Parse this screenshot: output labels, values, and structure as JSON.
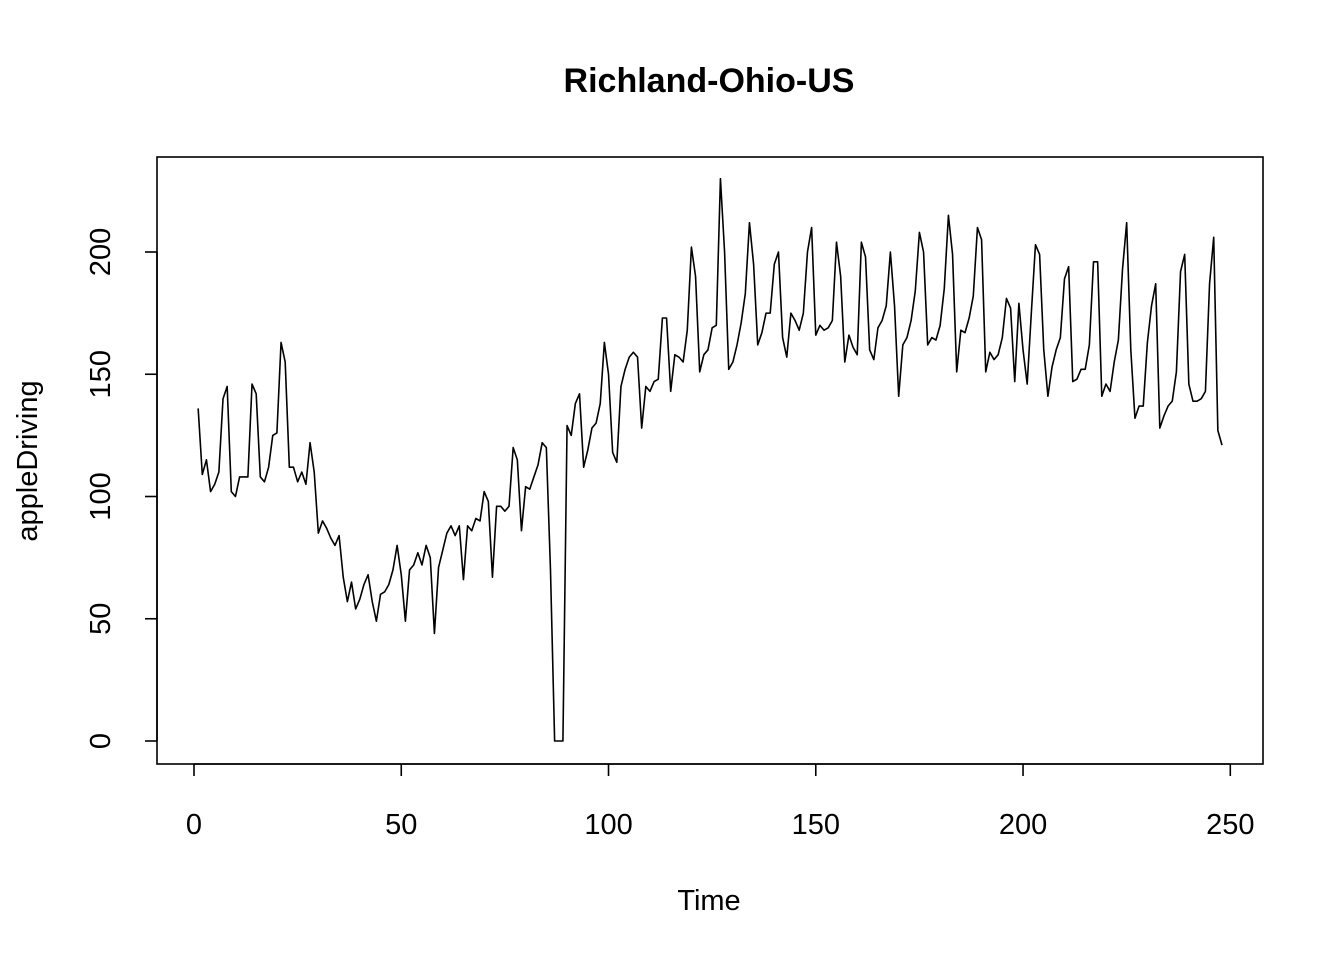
{
  "chart_data": {
    "type": "line",
    "title": "Richland-Ohio-US",
    "xlabel": "Time",
    "ylabel": "appleDriving",
    "xlim": [
      1,
      248
    ],
    "ylim": [
      0,
      230
    ],
    "x_ticks": [
      0,
      50,
      100,
      150,
      200,
      250
    ],
    "y_ticks": [
      0,
      50,
      100,
      150,
      200
    ],
    "x_tick_labels": [
      "0",
      "50",
      "100",
      "150",
      "200",
      "250"
    ],
    "y_tick_labels": [
      "0",
      "50",
      "100",
      "150",
      "200"
    ],
    "grid": false,
    "series": [
      {
        "name": "appleDriving",
        "x_start": 1,
        "values": [
          136,
          109,
          115,
          102,
          105,
          110,
          140,
          145,
          102,
          100,
          108,
          108,
          108,
          146,
          142,
          108,
          106,
          112,
          125,
          126,
          163,
          155,
          112,
          112,
          106,
          110,
          105,
          122,
          110,
          85,
          90,
          87,
          83,
          80,
          84,
          67,
          57,
          65,
          54,
          58,
          64,
          68,
          57,
          49,
          60,
          61,
          64,
          70,
          80,
          68,
          49,
          70,
          72,
          77,
          72,
          80,
          75,
          44,
          71,
          78,
          85,
          88,
          84,
          88,
          66,
          88,
          86,
          91,
          90,
          102,
          98,
          67,
          96,
          96,
          94,
          96,
          120,
          115,
          86,
          104,
          103,
          108,
          113,
          122,
          120,
          70,
          0,
          0,
          0,
          129,
          125,
          138,
          142,
          112,
          119,
          128,
          130,
          138,
          163,
          150,
          118,
          114,
          145,
          152,
          157,
          159,
          157,
          128,
          145,
          143,
          147,
          148,
          173,
          173,
          143,
          158,
          157,
          155,
          168,
          202,
          190,
          151,
          158,
          160,
          169,
          170,
          230,
          200,
          152,
          155,
          162,
          171,
          183,
          212,
          195,
          162,
          167,
          175,
          175,
          195,
          200,
          165,
          157,
          175,
          172,
          168,
          175,
          200,
          210,
          166,
          170,
          168,
          169,
          172,
          204,
          190,
          155,
          166,
          161,
          158,
          204,
          198,
          160,
          156,
          169,
          172,
          178,
          200,
          178,
          141,
          162,
          165,
          172,
          184,
          208,
          200,
          162,
          165,
          164,
          170,
          185,
          215,
          199,
          151,
          168,
          167,
          173,
          182,
          210,
          205,
          151,
          159,
          156,
          158,
          165,
          181,
          177,
          147,
          179,
          160,
          146,
          175,
          203,
          199,
          160,
          141,
          153,
          160,
          165,
          189,
          194,
          147,
          148,
          152,
          152,
          162,
          196,
          196,
          141,
          146,
          143,
          155,
          164,
          193,
          212,
          160,
          132,
          137,
          137,
          163,
          178,
          187,
          128,
          133,
          137,
          139,
          151,
          192,
          199,
          146,
          139,
          139,
          140,
          143,
          187,
          206,
          127,
          121
        ]
      }
    ]
  }
}
